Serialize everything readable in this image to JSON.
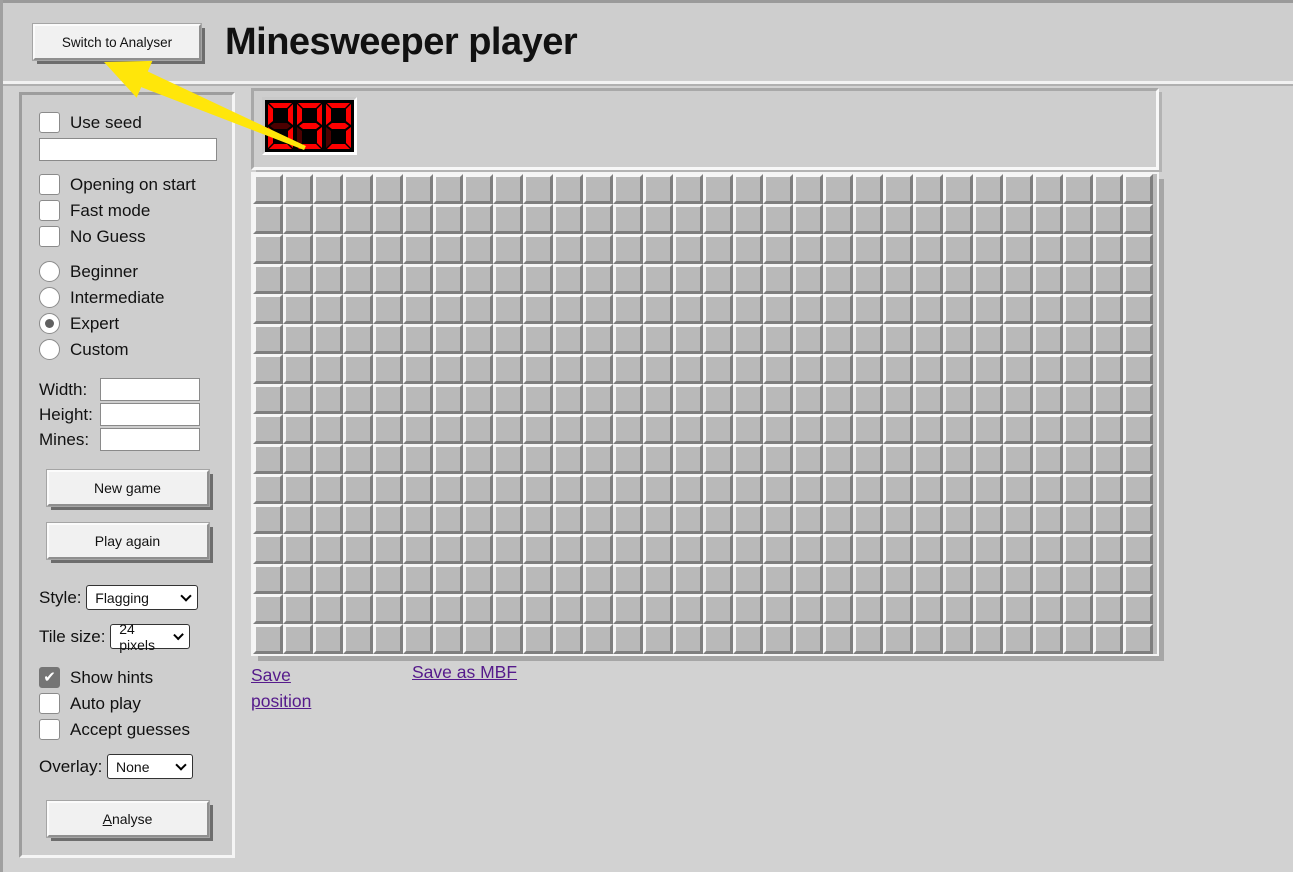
{
  "header": {
    "switch_to_analyser_label": "Switch to Analyser",
    "title": "Minesweeper player"
  },
  "sidebar": {
    "use_seed": {
      "label": "Use seed",
      "checked": false
    },
    "seed_input": {
      "value": ""
    },
    "options": [
      {
        "label": "Opening on start",
        "checked": false
      },
      {
        "label": "Fast mode",
        "checked": false
      },
      {
        "label": "No Guess",
        "checked": false
      }
    ],
    "difficulty": [
      {
        "label": "Beginner",
        "selected": false
      },
      {
        "label": "Intermediate",
        "selected": false
      },
      {
        "label": "Expert",
        "selected": true
      },
      {
        "label": "Custom",
        "selected": false
      }
    ],
    "custom_fields": [
      {
        "label": "Width:",
        "value": ""
      },
      {
        "label": "Height:",
        "value": ""
      },
      {
        "label": "Mines:",
        "value": ""
      }
    ],
    "buttons": {
      "new_game": "New game",
      "play_again": "Play again",
      "analyse": "Analyse"
    },
    "style": {
      "label": "Style:",
      "value": "Flagging"
    },
    "tile_size": {
      "label": "Tile size:",
      "value": "24 pixels"
    },
    "play_options": [
      {
        "label": "Show hints",
        "checked": true
      },
      {
        "label": "Auto play",
        "checked": false
      },
      {
        "label": "Accept guesses",
        "checked": false
      }
    ],
    "overlay": {
      "label": "Overlay:",
      "value": "None"
    }
  },
  "game": {
    "mine_counter": "099",
    "board": {
      "columns": 30,
      "rows": 16
    },
    "links": {
      "save_position": "Save position",
      "save_as_mbf": "Save as MBF"
    }
  },
  "colors": {
    "page_bg": "#d2d2d2",
    "panel_bg": "#cecece",
    "tile_face": "#b9b9b9",
    "led_lit": "#ff0000",
    "led_unlit": "#4c0000",
    "link_purple": "#551a8b",
    "arrow_yellow": "#ffe60a"
  }
}
